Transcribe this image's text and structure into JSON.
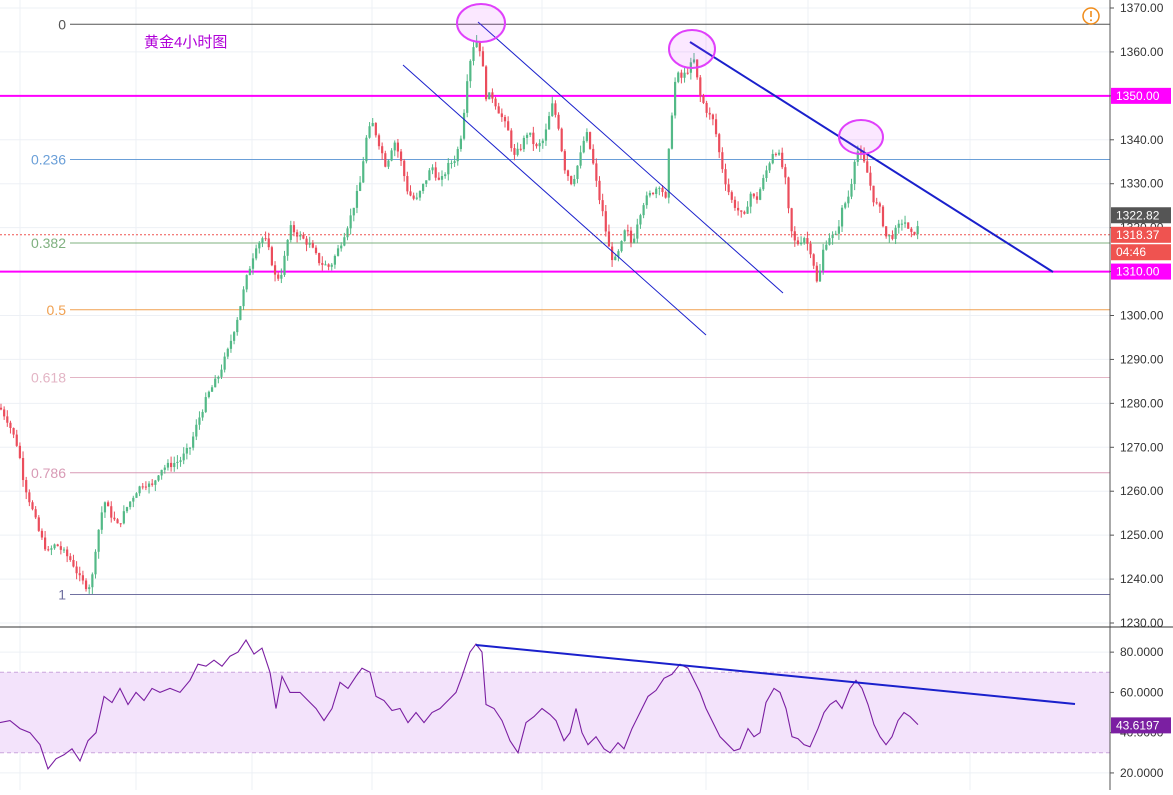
{
  "chart_data": [
    {
      "type": "candlestick",
      "title": "黄金4小时图",
      "y_axis": {
        "ylim": [
          1230,
          1370
        ],
        "tick_labels": [
          "1230.00",
          "1240.00",
          "1250.00",
          "1260.00",
          "1270.00",
          "1280.00",
          "1290.00",
          "1300.00",
          "1310.00",
          "1320.00",
          "1330.00",
          "1340.00",
          "1350.00",
          "1360.00",
          "1370.00"
        ]
      },
      "grid": true,
      "fibonacci_levels": [
        {
          "label": "0",
          "value": 1366.3,
          "color": "#555555"
        },
        {
          "label": "0.236",
          "value": 1335.5,
          "color": "#6a9fd8"
        },
        {
          "label": "0.382",
          "value": 1316.5,
          "color": "#7fb07f"
        },
        {
          "label": "0.5",
          "value": 1301.3,
          "color": "#f0a050"
        },
        {
          "label": "0.618",
          "value": 1285.9,
          "color": "#e3b5c5"
        },
        {
          "label": "0.786",
          "value": 1264.2,
          "color": "#d89ab5"
        },
        {
          "label": "1",
          "value": 1236.5,
          "color": "#7070a0"
        }
      ],
      "horizontal_levels": [
        {
          "label": "1350.00",
          "value": 1350.0,
          "color": "#ff00ff"
        },
        {
          "label": "1310.00",
          "value": 1310.0,
          "color": "#ff00ff"
        }
      ],
      "price_tags": [
        {
          "label": "1322.82",
          "value": 1322.82,
          "color": "#555555"
        },
        {
          "label": "1318.37",
          "value": 1318.37,
          "color": "#ef5350"
        },
        {
          "label": "04:46",
          "value": 1314.4,
          "color": "#ef5350"
        }
      ],
      "last_price": 1318.37,
      "colors": {
        "up": "#53b987",
        "down": "#eb4d5c"
      },
      "path_points": [
        [
          0,
          1279
        ],
        [
          8,
          1276
        ],
        [
          18,
          1270
        ],
        [
          24,
          1262
        ],
        [
          32,
          1256
        ],
        [
          40,
          1250
        ],
        [
          48,
          1246
        ],
        [
          56,
          1248
        ],
        [
          64,
          1246
        ],
        [
          72,
          1244
        ],
        [
          80,
          1240
        ],
        [
          88,
          1238
        ],
        [
          92,
          1240
        ],
        [
          96,
          1248
        ],
        [
          104,
          1258
        ],
        [
          110,
          1255
        ],
        [
          118,
          1252
        ],
        [
          126,
          1256
        ],
        [
          136,
          1260
        ],
        [
          144,
          1262
        ],
        [
          152,
          1261
        ],
        [
          160,
          1265
        ],
        [
          170,
          1266
        ],
        [
          180,
          1267
        ],
        [
          190,
          1270
        ],
        [
          198,
          1276
        ],
        [
          208,
          1282
        ],
        [
          218,
          1286
        ],
        [
          228,
          1292
        ],
        [
          238,
          1300
        ],
        [
          246,
          1308
        ],
        [
          256,
          1316
        ],
        [
          264,
          1318
        ],
        [
          270,
          1314
        ],
        [
          276,
          1308
        ],
        [
          282,
          1310
        ],
        [
          290,
          1320
        ],
        [
          300,
          1318
        ],
        [
          310,
          1316
        ],
        [
          320,
          1312
        ],
        [
          330,
          1311
        ],
        [
          340,
          1316
        ],
        [
          350,
          1322
        ],
        [
          360,
          1330
        ],
        [
          366,
          1340
        ],
        [
          372,
          1344
        ],
        [
          378,
          1340
        ],
        [
          386,
          1334
        ],
        [
          394,
          1340
        ],
        [
          400,
          1336
        ],
        [
          408,
          1328
        ],
        [
          416,
          1326
        ],
        [
          424,
          1330
        ],
        [
          432,
          1334
        ],
        [
          440,
          1330
        ],
        [
          448,
          1334
        ],
        [
          456,
          1336
        ],
        [
          462,
          1342
        ],
        [
          468,
          1356
        ],
        [
          474,
          1362
        ],
        [
          478,
          1363
        ],
        [
          482,
          1358
        ],
        [
          486,
          1350
        ],
        [
          492,
          1350
        ],
        [
          500,
          1346
        ],
        [
          508,
          1342
        ],
        [
          514,
          1336
        ],
        [
          520,
          1338
        ],
        [
          528,
          1342
        ],
        [
          536,
          1338
        ],
        [
          544,
          1340
        ],
        [
          552,
          1348
        ],
        [
          558,
          1344
        ],
        [
          564,
          1334
        ],
        [
          572,
          1330
        ],
        [
          580,
          1336
        ],
        [
          586,
          1342
        ],
        [
          592,
          1336
        ],
        [
          598,
          1328
        ],
        [
          604,
          1322
        ],
        [
          608,
          1316
        ],
        [
          614,
          1312
        ],
        [
          620,
          1315
        ],
        [
          626,
          1320
        ],
        [
          632,
          1316
        ],
        [
          638,
          1322
        ],
        [
          644,
          1326
        ],
        [
          652,
          1328
        ],
        [
          660,
          1330
        ],
        [
          666,
          1326
        ],
        [
          670,
          1342
        ],
        [
          676,
          1355
        ],
        [
          682,
          1354
        ],
        [
          688,
          1356
        ],
        [
          694,
          1358
        ],
        [
          700,
          1350
        ],
        [
          708,
          1346
        ],
        [
          714,
          1344
        ],
        [
          720,
          1336
        ],
        [
          726,
          1330
        ],
        [
          732,
          1326
        ],
        [
          738,
          1324
        ],
        [
          744,
          1322
        ],
        [
          750,
          1328
        ],
        [
          756,
          1326
        ],
        [
          762,
          1330
        ],
        [
          768,
          1334
        ],
        [
          774,
          1338
        ],
        [
          780,
          1336
        ],
        [
          786,
          1330
        ],
        [
          790,
          1320
        ],
        [
          796,
          1316
        ],
        [
          804,
          1318
        ],
        [
          812,
          1314
        ],
        [
          818,
          1306
        ],
        [
          822,
          1314
        ],
        [
          828,
          1318
        ],
        [
          836,
          1318
        ],
        [
          842,
          1324
        ],
        [
          850,
          1328
        ],
        [
          856,
          1338
        ],
        [
          862,
          1336
        ],
        [
          868,
          1332
        ],
        [
          874,
          1326
        ],
        [
          880,
          1324
        ],
        [
          886,
          1318
        ],
        [
          892,
          1318
        ],
        [
          898,
          1320
        ],
        [
          904,
          1322
        ],
        [
          910,
          1318
        ],
        [
          918,
          1320
        ]
      ]
    },
    {
      "type": "line",
      "title": "",
      "series": [
        {
          "values_path": "oscillator"
        }
      ],
      "y_axis": {
        "ylim": [
          15,
          90
        ],
        "tick_labels": [
          "20.0000",
          "40.0000",
          "60.0000",
          "80.0000"
        ]
      },
      "band": [
        30,
        70
      ],
      "last_value_label": "43.6197",
      "last_value": 43.6197,
      "points": [
        [
          0,
          45
        ],
        [
          10,
          46
        ],
        [
          20,
          42
        ],
        [
          30,
          40
        ],
        [
          40,
          34
        ],
        [
          48,
          22
        ],
        [
          56,
          27
        ],
        [
          64,
          29
        ],
        [
          72,
          32
        ],
        [
          80,
          26
        ],
        [
          88,
          36
        ],
        [
          96,
          40
        ],
        [
          104,
          58
        ],
        [
          112,
          55
        ],
        [
          120,
          62
        ],
        [
          128,
          54
        ],
        [
          136,
          60
        ],
        [
          144,
          56
        ],
        [
          152,
          62
        ],
        [
          160,
          60
        ],
        [
          170,
          62
        ],
        [
          180,
          60
        ],
        [
          190,
          66
        ],
        [
          198,
          74
        ],
        [
          206,
          73
        ],
        [
          214,
          76
        ],
        [
          222,
          73
        ],
        [
          230,
          78
        ],
        [
          238,
          80
        ],
        [
          246,
          86
        ],
        [
          254,
          79
        ],
        [
          262,
          82
        ],
        [
          270,
          70
        ],
        [
          276,
          52
        ],
        [
          282,
          68
        ],
        [
          290,
          60
        ],
        [
          300,
          60
        ],
        [
          308,
          56
        ],
        [
          316,
          52
        ],
        [
          324,
          46
        ],
        [
          332,
          52
        ],
        [
          340,
          65
        ],
        [
          348,
          62
        ],
        [
          356,
          68
        ],
        [
          362,
          72
        ],
        [
          370,
          70
        ],
        [
          376,
          58
        ],
        [
          384,
          56
        ],
        [
          392,
          51
        ],
        [
          400,
          52
        ],
        [
          408,
          45
        ],
        [
          416,
          50
        ],
        [
          424,
          45
        ],
        [
          432,
          50
        ],
        [
          440,
          52
        ],
        [
          448,
          56
        ],
        [
          456,
          60
        ],
        [
          462,
          68
        ],
        [
          470,
          80
        ],
        [
          476,
          84
        ],
        [
          482,
          80
        ],
        [
          486,
          54
        ],
        [
          494,
          52
        ],
        [
          502,
          46
        ],
        [
          510,
          36
        ],
        [
          518,
          30
        ],
        [
          526,
          45
        ],
        [
          534,
          48
        ],
        [
          542,
          52
        ],
        [
          550,
          49
        ],
        [
          556,
          46
        ],
        [
          564,
          36
        ],
        [
          570,
          40
        ],
        [
          576,
          52
        ],
        [
          582,
          40
        ],
        [
          588,
          34
        ],
        [
          596,
          38
        ],
        [
          604,
          32
        ],
        [
          610,
          30
        ],
        [
          618,
          35
        ],
        [
          624,
          32
        ],
        [
          632,
          42
        ],
        [
          640,
          50
        ],
        [
          648,
          58
        ],
        [
          656,
          61
        ],
        [
          664,
          67
        ],
        [
          672,
          69
        ],
        [
          680,
          74
        ],
        [
          688,
          72
        ],
        [
          694,
          66
        ],
        [
          700,
          60
        ],
        [
          706,
          52
        ],
        [
          714,
          44
        ],
        [
          720,
          38
        ],
        [
          726,
          35
        ],
        [
          734,
          31
        ],
        [
          740,
          32
        ],
        [
          748,
          42
        ],
        [
          754,
          38
        ],
        [
          760,
          40
        ],
        [
          766,
          55
        ],
        [
          774,
          62
        ],
        [
          780,
          60
        ],
        [
          786,
          52
        ],
        [
          792,
          38
        ],
        [
          798,
          37
        ],
        [
          804,
          34
        ],
        [
          810,
          33
        ],
        [
          818,
          42
        ],
        [
          824,
          50
        ],
        [
          830,
          54
        ],
        [
          836,
          56
        ],
        [
          842,
          52
        ],
        [
          850,
          62
        ],
        [
          856,
          66
        ],
        [
          862,
          62
        ],
        [
          868,
          54
        ],
        [
          874,
          44
        ],
        [
          880,
          38
        ],
        [
          886,
          34
        ],
        [
          892,
          38
        ],
        [
          898,
          46
        ],
        [
          904,
          50
        ],
        [
          910,
          48
        ],
        [
          918,
          44
        ]
      ],
      "annotation_colors": {
        "trendline": "#1a20cc",
        "ellipse": "#e040fb",
        "band": "#d9b8f0"
      }
    }
  ],
  "alert_icon": "alert-circle-icon"
}
